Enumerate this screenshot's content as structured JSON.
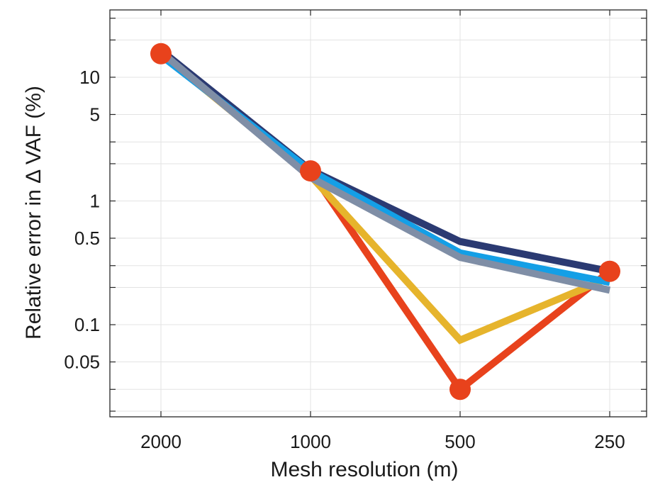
{
  "chart_data": {
    "type": "line",
    "xlabel": "Mesh resolution (m)",
    "ylabel": "Relative error in  Δ VAF (%)",
    "y_scale": "log",
    "ylim": [
      0.018,
      35
    ],
    "x_order": "decreasing",
    "categories": [
      "2000",
      "1000",
      "500",
      "250"
    ],
    "y_ticks": [
      {
        "value": 0.05,
        "label": "0.05"
      },
      {
        "value": 0.1,
        "label": "0.1"
      },
      {
        "value": 0.5,
        "label": "0.5"
      },
      {
        "value": 1,
        "label": "1"
      },
      {
        "value": 5,
        "label": "5"
      },
      {
        "value": 10,
        "label": "10"
      }
    ],
    "grid": true,
    "series": [
      {
        "color": "#e8421c",
        "marker": "circle",
        "values": [
          15.5,
          1.75,
          0.03,
          0.27
        ]
      },
      {
        "color": "#e6b42c",
        "marker": "none",
        "values": [
          15.5,
          1.6,
          0.075,
          0.24
        ]
      },
      {
        "color": "#2b3a72",
        "marker": "none",
        "values": [
          16.5,
          1.78,
          0.47,
          0.27
        ]
      },
      {
        "color": "#149fe6",
        "marker": "none",
        "values": [
          15.0,
          1.75,
          0.38,
          0.22
        ]
      },
      {
        "color": "#7f8ea6",
        "marker": "none",
        "values": [
          16.0,
          1.55,
          0.35,
          0.19
        ]
      }
    ]
  }
}
